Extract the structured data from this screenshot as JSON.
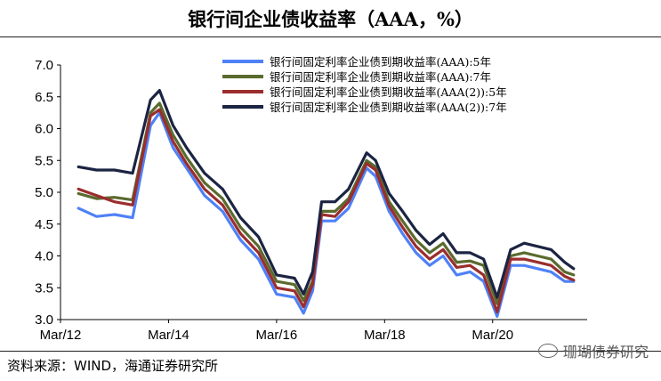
{
  "title": "银行间企业债收益率（AAA，%）",
  "source": "资料来源：WIND，海通证券研究所",
  "watermark": "珊瑚债券研究",
  "chart_data": {
    "type": "line",
    "x_ticks": [
      "Mar/12",
      "Mar/14",
      "Mar/16",
      "Mar/18",
      "Mar/20"
    ],
    "y_ticks": [
      "3.0",
      "3.5",
      "4.0",
      "4.5",
      "5.0",
      "5.5",
      "6.0",
      "6.5",
      "7.0"
    ],
    "ylim": [
      3.0,
      7.0
    ],
    "xlim": [
      "2012-03",
      "2021-12"
    ],
    "legend_position": "top-right",
    "x": [
      "2012-07",
      "2012-11",
      "2013-03",
      "2013-07",
      "2013-11",
      "2014-01",
      "2014-04",
      "2014-07",
      "2014-11",
      "2015-03",
      "2015-07",
      "2015-11",
      "2016-03",
      "2016-07",
      "2016-09",
      "2016-11",
      "2017-01",
      "2017-04",
      "2017-07",
      "2017-11",
      "2018-01",
      "2018-04",
      "2018-07",
      "2018-10",
      "2019-01",
      "2019-04",
      "2019-07",
      "2019-10",
      "2020-01",
      "2020-04",
      "2020-07",
      "2020-10",
      "2021-01",
      "2021-04",
      "2021-07",
      "2021-09"
    ],
    "series": [
      {
        "name": "银行间固定利率企业债到期收益率(AAA):5年",
        "color": "#4f81f7",
        "values": [
          4.75,
          4.62,
          4.65,
          4.6,
          6.05,
          6.25,
          5.7,
          5.38,
          4.95,
          4.7,
          4.25,
          3.95,
          3.4,
          3.35,
          3.1,
          3.45,
          4.55,
          4.55,
          4.75,
          5.38,
          5.25,
          4.7,
          4.35,
          4.05,
          3.85,
          4.0,
          3.7,
          3.75,
          3.6,
          3.05,
          3.85,
          3.85,
          3.8,
          3.75,
          3.6,
          3.6
        ]
      },
      {
        "name": "银行间固定利率企业债到期收益率(AAA):7年",
        "color": "#5a6b2e",
        "values": [
          4.98,
          4.9,
          4.92,
          4.88,
          6.25,
          6.4,
          5.9,
          5.55,
          5.15,
          4.9,
          4.45,
          4.15,
          3.6,
          3.55,
          3.3,
          3.6,
          4.7,
          4.7,
          4.9,
          5.5,
          5.4,
          4.85,
          4.55,
          4.25,
          4.05,
          4.2,
          3.9,
          3.92,
          3.85,
          3.25,
          4.0,
          4.05,
          4.0,
          3.95,
          3.75,
          3.7
        ]
      },
      {
        "name": "银行间固定利率企业债到期收益率(AAA(2)):5年",
        "color": "#9b2d2d",
        "values": [
          5.05,
          4.95,
          4.85,
          4.8,
          6.2,
          6.3,
          5.8,
          5.45,
          5.05,
          4.8,
          4.35,
          4.05,
          3.5,
          3.45,
          3.2,
          3.55,
          4.65,
          4.62,
          4.85,
          5.45,
          5.35,
          4.78,
          4.45,
          4.15,
          3.95,
          4.1,
          3.82,
          3.85,
          3.7,
          3.12,
          3.95,
          3.95,
          3.9,
          3.85,
          3.68,
          3.62
        ]
      },
      {
        "name": "银行间固定利率企业债到期收益率(AAA(2)):7年",
        "color": "#1b2442",
        "values": [
          5.4,
          5.35,
          5.35,
          5.3,
          6.45,
          6.6,
          6.05,
          5.7,
          5.3,
          5.05,
          4.6,
          4.3,
          3.7,
          3.65,
          3.4,
          3.75,
          4.85,
          4.85,
          5.05,
          5.62,
          5.5,
          4.98,
          4.7,
          4.4,
          4.18,
          4.35,
          4.05,
          4.05,
          3.95,
          3.35,
          4.1,
          4.2,
          4.15,
          4.1,
          3.9,
          3.8
        ]
      }
    ]
  }
}
